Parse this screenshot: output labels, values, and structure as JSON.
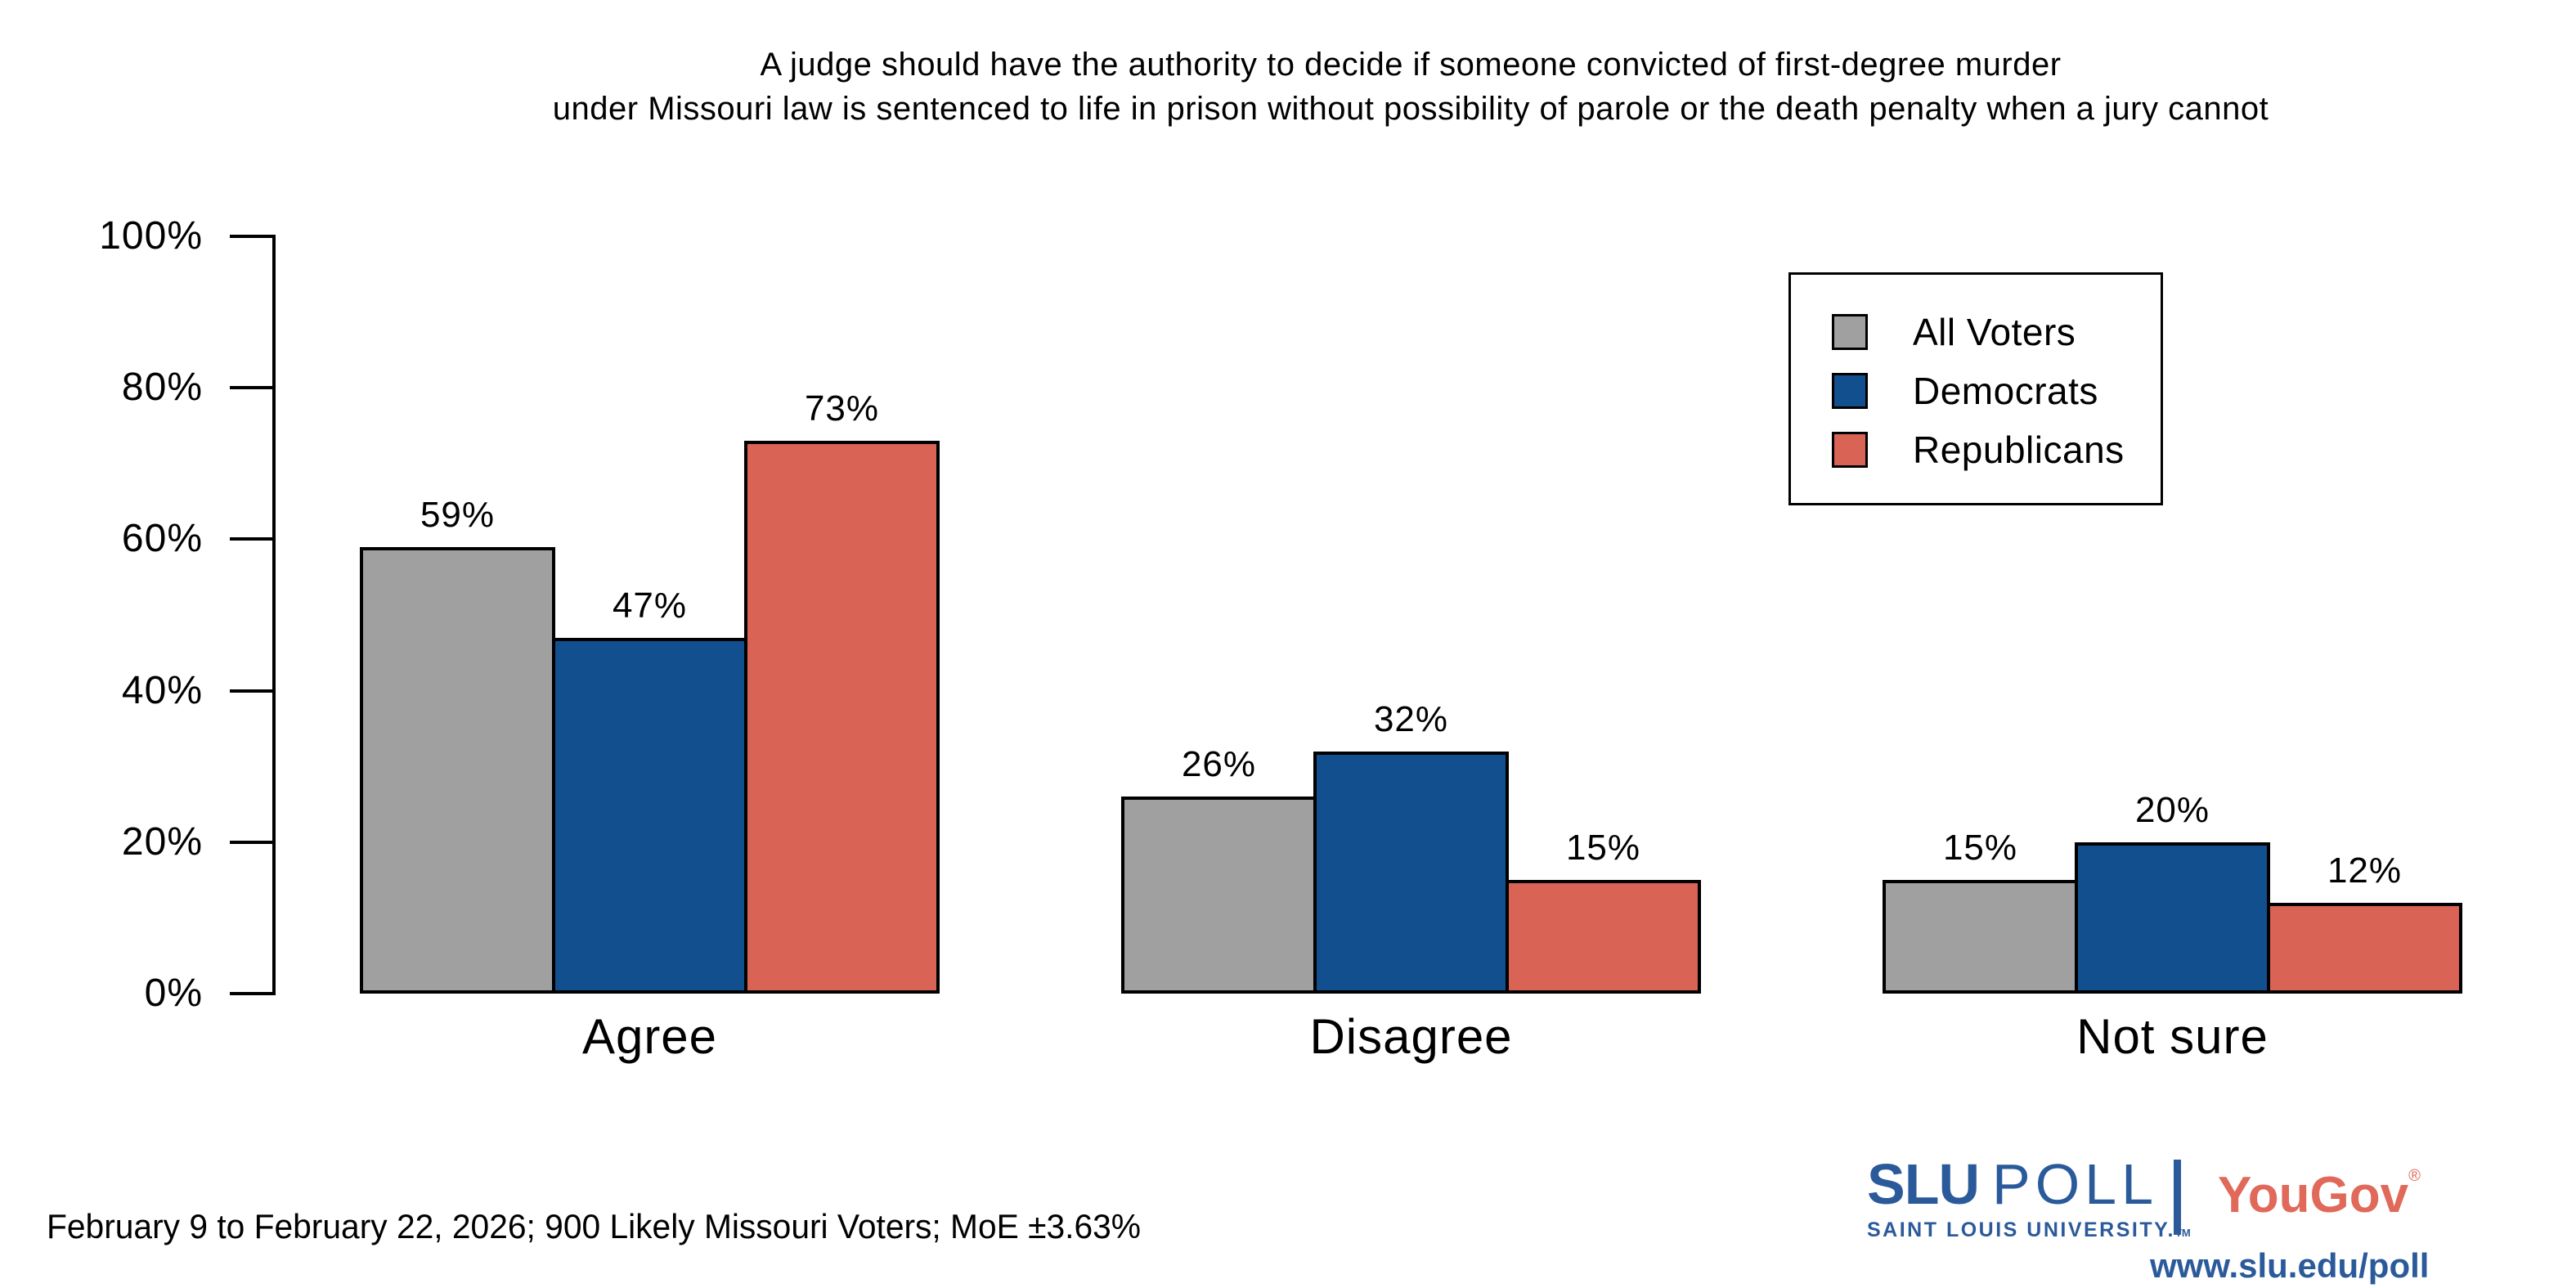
{
  "title": {
    "line1": "A judge should have the authority to decide if someone convicted of first-degree murder",
    "line2": "under Missouri law is sentenced to life in prison without possibility of parole or the death penalty when a jury cannot"
  },
  "chart_data": {
    "type": "bar",
    "categories": [
      "Agree",
      "Disagree",
      "Not sure"
    ],
    "series": [
      {
        "name": "All Voters",
        "color": "#a0a0a0",
        "values": [
          59,
          26,
          15
        ]
      },
      {
        "name": "Democrats",
        "color": "#124f8f",
        "values": [
          47,
          32,
          20
        ]
      },
      {
        "name": "Republicans",
        "color": "#d96355",
        "values": [
          73,
          15,
          12
        ]
      }
    ],
    "value_suffix": "%",
    "ylim": [
      0,
      100
    ],
    "yticks": [
      "0%",
      "20%",
      "40%",
      "60%",
      "80%",
      "100%"
    ],
    "ytick_values": [
      0,
      20,
      40,
      60,
      80,
      100
    ],
    "grid": false,
    "legend_position": "top-right",
    "bar_border_color": "#000000"
  },
  "footer": {
    "note": "February 9 to February 22, 2026; 900 Likely Missouri Voters; MoE ±3.63%"
  },
  "branding": {
    "slu": "SLU",
    "poll": "POLL",
    "subtitle": "SAINT LOUIS UNIVERSITY.",
    "trademark": "TM",
    "yougov": "YouGov",
    "registered": "®",
    "url": "www.slu.edu/poll",
    "slu_blue": "#2b5a9b",
    "yougov_red": "#e0695a"
  }
}
